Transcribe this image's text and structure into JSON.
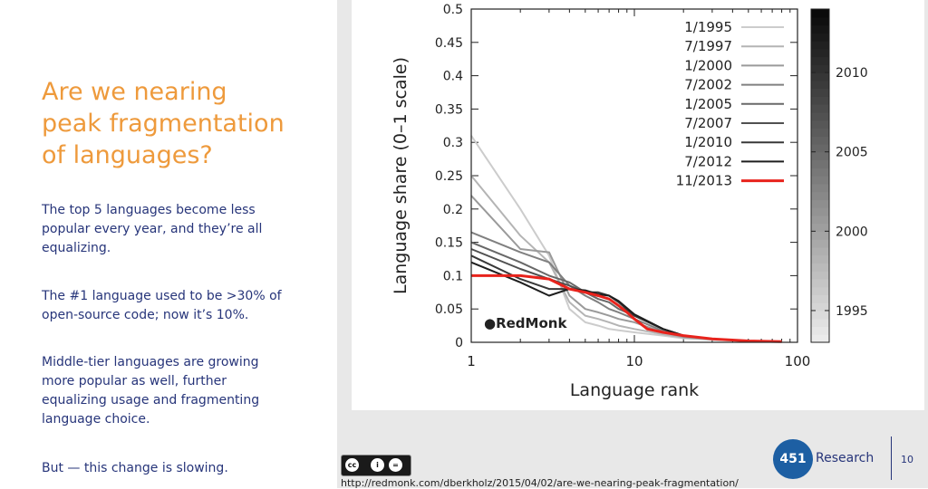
{
  "slide": {
    "title_lines": [
      "Are we nearing",
      "peak fragmentation",
      "of languages?"
    ],
    "paragraphs": [
      [
        "The top 5 languages become less",
        "popular every year, and they’re all",
        "equalizing."
      ],
      [
        "The #1 language used to be >30% of",
        "open-source code; now it’s 10%."
      ],
      [
        "Middle-tier languages are growing",
        "more popular as well, further",
        "equalizing usage and fragmenting",
        "language choice."
      ],
      [
        "But — this change is slowing."
      ]
    ],
    "source_url": "http://redmonk.com/dberkholz/2015/04/02/are-we-nearing-peak-fragmentation/",
    "logo_number": "451",
    "logo_word": "Research",
    "slide_number": "10",
    "cc_icons": [
      "cc",
      "i",
      "="
    ]
  },
  "chart_data": {
    "type": "line",
    "xlabel": "Language rank",
    "ylabel": "Language share (0–1 scale)",
    "x_scale": "log",
    "xlim": [
      1,
      100
    ],
    "ylim": [
      0,
      0.5
    ],
    "x_ticks": [
      "1",
      "10",
      "100"
    ],
    "y_ticks": [
      "0",
      "0.05",
      "0.1",
      "0.15",
      "0.2",
      "0.25",
      "0.3",
      "0.35",
      "0.4",
      "0.45",
      "0.5"
    ],
    "watermark": "RedMonk",
    "legend_position": "top-right",
    "colorbar": {
      "labels": [
        "2010",
        "2005",
        "2000",
        "1995"
      ],
      "label_values": [
        2010,
        2005,
        2000,
        1995
      ],
      "range": [
        1993,
        2014
      ]
    },
    "series": [
      {
        "name": "1/1995",
        "color": "#cccccc",
        "width": 2,
        "x": [
          1,
          2,
          3,
          4,
          5,
          6,
          7,
          8,
          10,
          15,
          20,
          30,
          50,
          80
        ],
        "y": [
          0.31,
          0.2,
          0.13,
          0.05,
          0.03,
          0.025,
          0.02,
          0.018,
          0.015,
          0.01,
          0.006,
          0.004,
          0.002,
          0.001
        ]
      },
      {
        "name": "7/1997",
        "color": "#b4b4b4",
        "width": 2,
        "x": [
          1,
          2,
          3,
          4,
          5,
          6,
          7,
          8,
          10,
          15,
          20,
          30,
          50,
          80
        ],
        "y": [
          0.25,
          0.16,
          0.12,
          0.06,
          0.04,
          0.035,
          0.03,
          0.025,
          0.02,
          0.012,
          0.007,
          0.004,
          0.002,
          0.001
        ]
      },
      {
        "name": "1/2000",
        "color": "#9a9a9a",
        "width": 2,
        "x": [
          1,
          2,
          3,
          4,
          5,
          6,
          7,
          8,
          10,
          15,
          20,
          30,
          50,
          80
        ],
        "y": [
          0.22,
          0.14,
          0.135,
          0.07,
          0.05,
          0.045,
          0.04,
          0.035,
          0.03,
          0.015,
          0.008,
          0.005,
          0.002,
          0.001
        ]
      },
      {
        "name": "7/2002",
        "color": "#808080",
        "width": 2,
        "x": [
          1,
          2,
          3,
          4,
          5,
          6,
          7,
          8,
          10,
          15,
          20,
          30,
          50,
          80
        ],
        "y": [
          0.165,
          0.135,
          0.12,
          0.085,
          0.07,
          0.06,
          0.05,
          0.045,
          0.035,
          0.017,
          0.009,
          0.005,
          0.002,
          0.001
        ]
      },
      {
        "name": "1/2005",
        "color": "#686868",
        "width": 2,
        "x": [
          1,
          2,
          3,
          4,
          5,
          6,
          7,
          8,
          10,
          15,
          20,
          30,
          50,
          80
        ],
        "y": [
          0.15,
          0.12,
          0.1,
          0.09,
          0.075,
          0.065,
          0.06,
          0.05,
          0.04,
          0.02,
          0.01,
          0.005,
          0.002,
          0.001
        ]
      },
      {
        "name": "7/2007",
        "color": "#505050",
        "width": 2,
        "x": [
          1,
          2,
          3,
          4,
          5,
          6,
          7,
          8,
          10,
          15,
          20,
          30,
          50,
          80
        ],
        "y": [
          0.14,
          0.11,
          0.095,
          0.085,
          0.075,
          0.07,
          0.065,
          0.055,
          0.04,
          0.02,
          0.01,
          0.005,
          0.002,
          0.001
        ]
      },
      {
        "name": "1/2010",
        "color": "#383838",
        "width": 2,
        "x": [
          1,
          2,
          3,
          4,
          5,
          6,
          7,
          8,
          10,
          15,
          20,
          30,
          50,
          80
        ],
        "y": [
          0.13,
          0.095,
          0.08,
          0.08,
          0.075,
          0.075,
          0.07,
          0.06,
          0.04,
          0.02,
          0.01,
          0.005,
          0.002,
          0.001
        ]
      },
      {
        "name": "7/2012",
        "color": "#1e1e1e",
        "width": 2,
        "x": [
          1,
          2,
          3,
          4,
          5,
          6,
          7,
          8,
          10,
          15,
          20,
          30,
          50,
          80
        ],
        "y": [
          0.12,
          0.09,
          0.07,
          0.08,
          0.078,
          0.072,
          0.07,
          0.062,
          0.042,
          0.02,
          0.01,
          0.005,
          0.002,
          0.001
        ]
      },
      {
        "name": "11/2013",
        "color": "#e8231c",
        "width": 3,
        "x": [
          1,
          2,
          3,
          4,
          5,
          6,
          7,
          8,
          9,
          10,
          12,
          15,
          20,
          30,
          50,
          80
        ],
        "y": [
          0.1,
          0.1,
          0.095,
          0.08,
          0.075,
          0.07,
          0.065,
          0.055,
          0.045,
          0.035,
          0.02,
          0.015,
          0.01,
          0.005,
          0.002,
          0.001
        ]
      }
    ]
  }
}
